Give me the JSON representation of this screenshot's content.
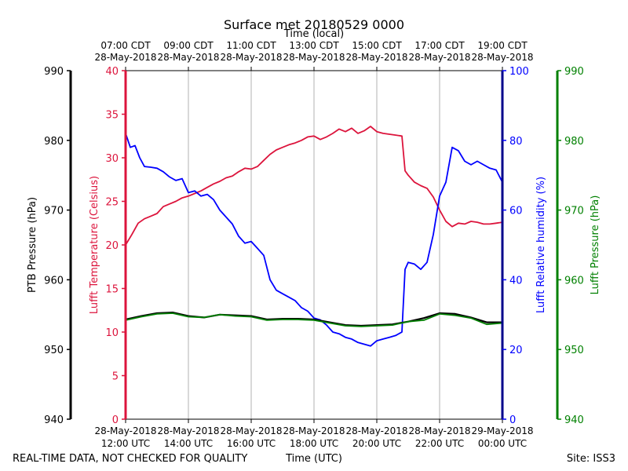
{
  "chart_data": {
    "type": "line",
    "title": "Surface met 20180529 0000",
    "top_axis_label": "Time (local)",
    "top_ticks": [
      {
        "time": "07:00 CDT",
        "date": "28-May-2018"
      },
      {
        "time": "09:00 CDT",
        "date": "28-May-2018"
      },
      {
        "time": "11:00 CDT",
        "date": "28-May-2018"
      },
      {
        "time": "13:00 CDT",
        "date": "28-May-2018"
      },
      {
        "time": "15:00 CDT",
        "date": "28-May-2018"
      },
      {
        "time": "17:00 CDT",
        "date": "28-May-2018"
      },
      {
        "time": "19:00 CDT",
        "date": "28-May-2018"
      }
    ],
    "bottom_ticks": [
      {
        "date": "28-May-2018",
        "time": "12:00 UTC"
      },
      {
        "date": "28-May-2018",
        "time": "14:00 UTC"
      },
      {
        "date": "28-May-2018",
        "time": "16:00 UTC"
      },
      {
        "date": "28-May-2018",
        "time": "18:00 UTC"
      },
      {
        "date": "28-May-2018",
        "time": "20:00 UTC"
      },
      {
        "date": "28-May-2018",
        "time": "22:00 UTC"
      },
      {
        "date": "29-May-2018",
        "time": "00:00 UTC"
      }
    ],
    "xlabel": "Time (UTC)",
    "x_hours_utc": [
      12,
      24
    ],
    "footer_left": "REAL-TIME DATA, NOT CHECKED FOR QUALITY",
    "footer_right": "Site: ISS3",
    "axes": {
      "ptb": {
        "label": "PTB Pressure (hPa)",
        "range": [
          940,
          990
        ],
        "ticks": [
          "940",
          "950",
          "960",
          "970",
          "980",
          "990"
        ],
        "color": "#000000"
      },
      "temp": {
        "label": "Lufft Temperature (Celsius)",
        "range": [
          0,
          40
        ],
        "ticks": [
          "0",
          "5",
          "10",
          "15",
          "20",
          "25",
          "30",
          "35",
          "40"
        ],
        "color": "#dc143c"
      },
      "rh": {
        "label": "Lufft Relative humidity (%)",
        "range": [
          0,
          100
        ],
        "ticks": [
          "0",
          "20",
          "40",
          "60",
          "80",
          "100"
        ],
        "color": "#0000ff"
      },
      "lufft_p": {
        "label": "Lufft Pressure (hPa)",
        "range": [
          940,
          990
        ],
        "ticks": [
          "940",
          "950",
          "960",
          "970",
          "980",
          "990"
        ],
        "color": "#008000"
      }
    },
    "series": [
      {
        "name": "Lufft Temperature",
        "axis": "temp",
        "color": "#dc143c",
        "x": [
          12.0,
          12.2,
          12.4,
          12.6,
          12.8,
          13.0,
          13.2,
          13.4,
          13.6,
          13.8,
          14.0,
          14.2,
          14.4,
          14.6,
          14.8,
          15.0,
          15.2,
          15.4,
          15.6,
          15.8,
          16.0,
          16.2,
          16.4,
          16.6,
          16.8,
          17.0,
          17.2,
          17.4,
          17.6,
          17.8,
          18.0,
          18.2,
          18.4,
          18.6,
          18.8,
          19.0,
          19.2,
          19.4,
          19.6,
          19.8,
          20.0,
          20.2,
          20.4,
          20.6,
          20.8,
          20.9,
          21.0,
          21.2,
          21.4,
          21.6,
          21.8,
          22.0,
          22.2,
          22.4,
          22.6,
          22.8,
          23.0,
          23.2,
          23.4,
          23.6,
          23.8,
          24.0
        ],
        "values": [
          20.0,
          21.2,
          22.5,
          23.0,
          23.3,
          23.6,
          24.4,
          24.7,
          25.0,
          25.4,
          25.6,
          25.9,
          26.2,
          26.6,
          27.0,
          27.3,
          27.7,
          27.9,
          28.4,
          28.8,
          28.7,
          29.0,
          29.7,
          30.4,
          30.9,
          31.2,
          31.5,
          31.7,
          32.0,
          32.4,
          32.5,
          32.1,
          32.4,
          32.8,
          33.3,
          33.0,
          33.4,
          32.8,
          33.1,
          33.6,
          33.0,
          32.8,
          32.7,
          32.6,
          32.5,
          28.5,
          28.0,
          27.2,
          26.8,
          26.5,
          25.5,
          24.0,
          22.7,
          22.1,
          22.5,
          22.4,
          22.7,
          22.6,
          22.4,
          22.4,
          22.5,
          22.6
        ]
      },
      {
        "name": "Lufft Relative humidity",
        "axis": "rh",
        "color": "#0000ff",
        "x": [
          12.0,
          12.15,
          12.3,
          12.45,
          12.6,
          12.8,
          13.0,
          13.2,
          13.4,
          13.6,
          13.8,
          14.0,
          14.2,
          14.4,
          14.6,
          14.8,
          15.0,
          15.2,
          15.4,
          15.6,
          15.8,
          16.0,
          16.2,
          16.4,
          16.6,
          16.8,
          17.0,
          17.2,
          17.4,
          17.6,
          17.8,
          18.0,
          18.2,
          18.4,
          18.6,
          18.8,
          19.0,
          19.2,
          19.4,
          19.6,
          19.8,
          20.0,
          20.2,
          20.4,
          20.6,
          20.8,
          20.9,
          21.0,
          21.2,
          21.4,
          21.6,
          21.8,
          22.0,
          22.2,
          22.4,
          22.6,
          22.8,
          23.0,
          23.2,
          23.4,
          23.6,
          23.8,
          24.0
        ],
        "values": [
          82.0,
          78.0,
          78.5,
          75.0,
          72.5,
          72.3,
          72.0,
          71.0,
          69.5,
          68.5,
          69.0,
          65.0,
          65.5,
          64.0,
          64.5,
          63.0,
          60.0,
          58.0,
          56.0,
          52.5,
          50.5,
          51.0,
          49.0,
          47.0,
          40.0,
          37.0,
          36.0,
          35.0,
          34.0,
          32.0,
          31.0,
          29.0,
          28.5,
          27.0,
          25.0,
          24.5,
          23.5,
          23.0,
          22.0,
          21.5,
          21.0,
          22.5,
          23.0,
          23.5,
          24.0,
          25.0,
          43.0,
          45.0,
          44.5,
          43.0,
          45.0,
          53.0,
          64.0,
          68.0,
          78.0,
          77.0,
          74.0,
          73.0,
          74.0,
          73.0,
          72.0,
          71.5,
          68.0
        ]
      },
      {
        "name": "PTB Pressure",
        "axis": "ptb",
        "color": "#000000",
        "x": [
          12.0,
          12.5,
          13.0,
          13.5,
          14.0,
          14.5,
          15.0,
          15.5,
          16.0,
          16.5,
          17.0,
          17.5,
          18.0,
          18.5,
          19.0,
          19.5,
          20.0,
          20.5,
          21.0,
          21.5,
          22.0,
          22.5,
          23.0,
          23.5,
          24.0
        ],
        "values": [
          954.3,
          954.8,
          955.2,
          955.3,
          954.8,
          954.6,
          955.0,
          954.9,
          954.8,
          954.3,
          954.4,
          954.4,
          954.3,
          953.9,
          953.5,
          953.4,
          953.5,
          953.6,
          954.0,
          954.5,
          955.2,
          955.1,
          954.6,
          953.9,
          953.9
        ]
      },
      {
        "name": "Lufft Pressure",
        "axis": "lufft_p",
        "color": "#008000",
        "x": [
          12.0,
          12.5,
          13.0,
          13.5,
          14.0,
          14.5,
          15.0,
          15.5,
          16.0,
          16.5,
          17.0,
          17.5,
          18.0,
          18.5,
          19.0,
          19.5,
          20.0,
          20.5,
          21.0,
          21.5,
          22.0,
          22.5,
          23.0,
          23.5,
          24.0
        ],
        "values": [
          954.2,
          954.7,
          955.1,
          955.2,
          954.7,
          954.6,
          955.0,
          954.8,
          954.7,
          954.2,
          954.3,
          954.3,
          954.2,
          953.8,
          953.4,
          953.3,
          953.4,
          953.5,
          954.0,
          954.2,
          955.1,
          954.9,
          954.5,
          953.6,
          953.8
        ]
      }
    ]
  }
}
